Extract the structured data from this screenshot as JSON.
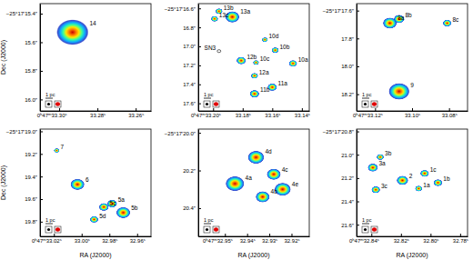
{
  "chart_data": [
    {
      "type": "image",
      "y_label": "Dec (J2000)",
      "annotations": [
        "1 pc"
      ],
      "xlim": [
        33.31,
        33.252
      ],
      "ylim": [
        15.33,
        16.08
      ],
      "xticks": [
        {
          "value": 33.3,
          "label": "0ʰ47ᵐ33.30ˢ"
        },
        {
          "value": 33.28,
          "label": "33.28ˢ"
        },
        {
          "value": 33.26,
          "label": "33.26ˢ"
        }
      ],
      "yticks": [
        {
          "value": 15.4,
          "label": "−25°17′15.4″"
        },
        {
          "value": 15.6,
          "label": "15.6″"
        },
        {
          "value": 15.8,
          "label": "15.8″"
        },
        {
          "value": 16.0,
          "label": "16.0″"
        }
      ],
      "sources": [
        {
          "label": "14",
          "ra": 33.293,
          "dec": 15.53,
          "size": 0.09
        }
      ]
    },
    {
      "type": "image",
      "annotations": [
        "1 pc"
      ],
      "xlim": [
        33.21,
        33.135
      ],
      "ylim": [
        16.55,
        17.68
      ],
      "xticks": [
        {
          "value": 33.2,
          "label": "0ʰ47ᵐ33.20ˢ"
        },
        {
          "value": 33.18,
          "label": "33.18ˢ"
        },
        {
          "value": 33.16,
          "label": "33.16ˢ"
        },
        {
          "value": 33.14,
          "label": "33.14ˢ"
        }
      ],
      "yticks": [
        {
          "value": 16.6,
          "label": "−25°17′16.6″"
        },
        {
          "value": 16.8,
          "label": "16.8″"
        },
        {
          "value": 17.0,
          "label": "17.0″"
        },
        {
          "value": 17.2,
          "label": "17.2″"
        },
        {
          "value": 17.4,
          "label": "17.4″"
        },
        {
          "value": 17.6,
          "label": "17.6″"
        }
      ],
      "sources": [
        {
          "label": "13a",
          "ra": 33.187,
          "dec": 16.69,
          "size": 0.06
        },
        {
          "label": "13b",
          "ra": 33.196,
          "dec": 16.63,
          "size": 0.03
        },
        {
          "label": "13c",
          "ra": 33.199,
          "dec": 16.71,
          "size": 0.03
        },
        {
          "label": "10d",
          "ra": 33.165,
          "dec": 16.93,
          "size": 0.025
        },
        {
          "label": "10b",
          "ra": 33.158,
          "dec": 17.04,
          "size": 0.03
        },
        {
          "label": "10a",
          "ra": 33.146,
          "dec": 17.18,
          "size": 0.035
        },
        {
          "label": "10c",
          "ra": 33.171,
          "dec": 17.17,
          "size": 0.025
        },
        {
          "label": "12b",
          "ra": 33.181,
          "dec": 17.15,
          "size": 0.04
        },
        {
          "label": "12a",
          "ra": 33.172,
          "dec": 17.31,
          "size": 0.03
        },
        {
          "label": "11a",
          "ra": 33.16,
          "dec": 17.43,
          "size": 0.04
        },
        {
          "label": "11b",
          "ra": 33.172,
          "dec": 17.5,
          "size": 0.04
        },
        {
          "label": "SN3",
          "ra": 33.196,
          "dec": 17.05,
          "size": 0.015
        }
      ]
    },
    {
      "type": "image",
      "annotations": [
        "1 pc"
      ],
      "xlim": [
        33.13,
        33.07
      ],
      "ylim": [
        17.55,
        18.32
      ],
      "xticks": [
        {
          "value": 33.12,
          "label": "0ʰ47ᵐ33.12ˢ"
        },
        {
          "value": 33.1,
          "label": "33.10ˢ"
        },
        {
          "value": 33.08,
          "label": "33.08ˢ"
        }
      ],
      "yticks": [
        {
          "value": 17.6,
          "label": "−25°17′17.6″"
        },
        {
          "value": 17.8,
          "label": "17.8″"
        },
        {
          "value": 18.0,
          "label": "18.0″"
        },
        {
          "value": 18.2,
          "label": "18.2″"
        }
      ],
      "sources": [
        {
          "label": "8a",
          "ra": 33.112,
          "dec": 17.69,
          "size": 0.04
        },
        {
          "label": "8b",
          "ra": 33.107,
          "dec": 17.66,
          "size": 0.03
        },
        {
          "label": "8c",
          "ra": 33.081,
          "dec": 17.69,
          "size": 0.025
        },
        {
          "label": "9",
          "ra": 33.107,
          "dec": 18.18,
          "size": 0.06
        }
      ]
    },
    {
      "type": "image",
      "x_label": "RA (J2000)",
      "y_label": "Dec (J2000)",
      "annotations": [
        "1 pc"
      ],
      "xlim": [
        33.03,
        32.95
      ],
      "ylim": [
        18.98,
        19.93
      ],
      "xticks": [
        {
          "value": 33.02,
          "label": "0ʰ47ᵐ33.02ˢ"
        },
        {
          "value": 33.0,
          "label": "33.00ˢ"
        },
        {
          "value": 32.98,
          "label": "32.98ˢ"
        },
        {
          "value": 32.96,
          "label": "32.96ˢ"
        }
      ],
      "yticks": [
        {
          "value": 19.0,
          "label": "−25°17′19.0″"
        },
        {
          "value": 19.2,
          "label": "19.2″"
        },
        {
          "value": 19.4,
          "label": "19.4″"
        },
        {
          "value": 19.6,
          "label": "19.6″"
        },
        {
          "value": 19.8,
          "label": "19.8″"
        }
      ],
      "sources": [
        {
          "label": "7",
          "ra": 33.018,
          "dec": 19.17,
          "size": 0.02
        },
        {
          "label": "6",
          "ra": 33.003,
          "dec": 19.47,
          "size": 0.05
        },
        {
          "label": "5c",
          "ra": 32.984,
          "dec": 19.67,
          "size": 0.035
        },
        {
          "label": "5a",
          "ra": 32.978,
          "dec": 19.64,
          "size": 0.035
        },
        {
          "label": "5b",
          "ra": 32.97,
          "dec": 19.72,
          "size": 0.05
        },
        {
          "label": "5d",
          "ra": 32.991,
          "dec": 19.78,
          "size": 0.03
        }
      ]
    },
    {
      "type": "image",
      "x_label": "RA (J2000)",
      "annotations": [
        "1 pc"
      ],
      "xlim": [
        32.962,
        32.912
      ],
      "ylim": [
        19.98,
        20.55
      ],
      "xticks": [
        {
          "value": 32.95,
          "label": "0ʰ47ᵐ32.95ˢ"
        },
        {
          "value": 32.94,
          "label": "32.94ˢ"
        },
        {
          "value": 32.93,
          "label": "32.93ˢ"
        },
        {
          "value": 32.92,
          "label": "32.92ˢ"
        }
      ],
      "yticks": [
        {
          "value": 20.0,
          "label": "−25°17′20.0″"
        },
        {
          "value": 20.2,
          "label": "20.2″"
        },
        {
          "value": 20.4,
          "label": "20.4″"
        }
      ],
      "sources": [
        {
          "label": "4a",
          "ra": 32.9455,
          "dec": 20.27,
          "size": 0.04
        },
        {
          "label": "4d",
          "ra": 32.936,
          "dec": 20.13,
          "size": 0.035
        },
        {
          "label": "4c",
          "ra": 32.928,
          "dec": 20.22,
          "size": 0.03
        },
        {
          "label": "4b",
          "ra": 32.933,
          "dec": 20.34,
          "size": 0.03
        },
        {
          "label": "4e",
          "ra": 32.924,
          "dec": 20.3,
          "size": 0.035
        }
      ]
    },
    {
      "type": "image",
      "x_label": "RA (J2000)",
      "annotations": [
        "1 pc"
      ],
      "xlim": [
        32.85,
        32.775
      ],
      "ylim": [
        20.78,
        21.7
      ],
      "xticks": [
        {
          "value": 32.84,
          "label": "0ʰ47ᵐ32.84ˢ"
        },
        {
          "value": 32.82,
          "label": "32.82ˢ"
        },
        {
          "value": 32.8,
          "label": "32.80ˢ"
        },
        {
          "value": 32.78,
          "label": "32.78ˢ"
        }
      ],
      "yticks": [
        {
          "value": 20.8,
          "label": "−25°17′20.8″"
        },
        {
          "value": 21.0,
          "label": "21.0″"
        },
        {
          "value": 21.2,
          "label": "21.2″"
        },
        {
          "value": 21.4,
          "label": "21.4″"
        },
        {
          "value": 21.6,
          "label": "21.6″"
        }
      ],
      "sources": [
        {
          "label": "3a",
          "ra": 32.839,
          "dec": 21.11,
          "size": 0.035
        },
        {
          "label": "3b",
          "ra": 32.834,
          "dec": 21.02,
          "size": 0.025
        },
        {
          "label": "3c",
          "ra": 32.837,
          "dec": 21.3,
          "size": 0.03
        },
        {
          "label": "2",
          "ra": 32.819,
          "dec": 21.22,
          "size": 0.04
        },
        {
          "label": "1a",
          "ra": 32.808,
          "dec": 21.29,
          "size": 0.025
        },
        {
          "label": "1c",
          "ra": 32.804,
          "dec": 21.16,
          "size": 0.03
        },
        {
          "label": "1b",
          "ra": 32.795,
          "dec": 21.24,
          "size": 0.03
        }
      ]
    }
  ]
}
